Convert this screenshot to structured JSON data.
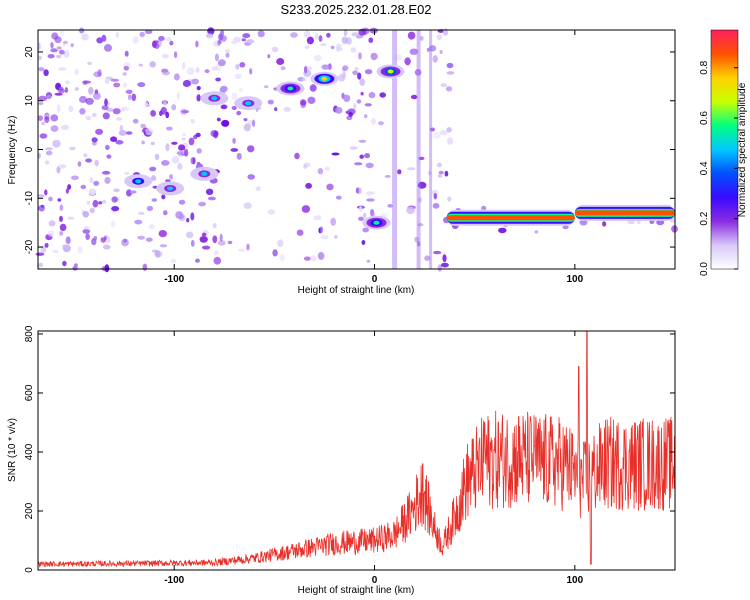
{
  "figure": {
    "title": "S233.2025.232.01.28.E02"
  },
  "chart_data": [
    {
      "type": "heatmap",
      "title": "S233.2025.232.01.28.E02",
      "xlabel": "Height of straight line (km)",
      "ylabel": "Frequency (Hz)",
      "xlim": [
        -168,
        150
      ],
      "ylim": [
        -24.5,
        24.5
      ],
      "x_ticks": [
        -100,
        0,
        100
      ],
      "y_ticks": [
        -20,
        -10,
        0,
        10,
        20
      ],
      "colorbar": {
        "label": "Normalized spectral amplitude",
        "range": [
          0,
          0.95
        ],
        "ticks": [
          0.0,
          0.2,
          0.4,
          0.6,
          0.8
        ],
        "colormap": [
          "#ffffff",
          "#d8c8f8",
          "#8a2be2",
          "#3a0aff",
          "#0050ff",
          "#00c8ff",
          "#00ff80",
          "#c8ff00",
          "#ffd000",
          "#ff5000",
          "#ff2060"
        ]
      },
      "features": [
        {
          "kind": "blob",
          "x": -118,
          "y": -6.5,
          "amplitude": 0.25
        },
        {
          "kind": "blob",
          "x": -102,
          "y": -8,
          "amplitude": 0.2
        },
        {
          "kind": "blob",
          "x": -85,
          "y": -5,
          "amplitude": 0.2
        },
        {
          "kind": "blob",
          "x": -80,
          "y": 10.5,
          "amplitude": 0.22
        },
        {
          "kind": "blob",
          "x": -63,
          "y": 9.5,
          "amplitude": 0.2
        },
        {
          "kind": "blob",
          "x": -42,
          "y": 12.5,
          "amplitude": 0.3
        },
        {
          "kind": "blob",
          "x": -25,
          "y": 14.5,
          "amplitude": 0.5
        },
        {
          "kind": "blob",
          "x": 1,
          "y": -15,
          "amplitude": 0.3
        },
        {
          "kind": "blob",
          "x": 8,
          "y": 16,
          "amplitude": 0.4
        },
        {
          "kind": "band",
          "x_start": 36,
          "x_end": 100,
          "y": -14,
          "amplitude": 0.85
        },
        {
          "kind": "band",
          "x_start": 100,
          "x_end": 150,
          "y": -13,
          "amplitude": 0.85
        }
      ]
    },
    {
      "type": "line",
      "xlabel": "Height of straight line (km)",
      "ylabel": "SNR (10 * v/v)",
      "xlim": [
        -168,
        150
      ],
      "ylim": [
        0,
        810
      ],
      "x_ticks": [
        -100,
        0,
        100
      ],
      "y_ticks": [
        0,
        200,
        400,
        600,
        800
      ],
      "color": "#e8302a",
      "envelope": [
        {
          "x": -168,
          "y": 20
        },
        {
          "x": -120,
          "y": 22
        },
        {
          "x": -80,
          "y": 25
        },
        {
          "x": -60,
          "y": 40
        },
        {
          "x": -40,
          "y": 65
        },
        {
          "x": -20,
          "y": 90
        },
        {
          "x": 0,
          "y": 100
        },
        {
          "x": 10,
          "y": 120
        },
        {
          "x": 18,
          "y": 190
        },
        {
          "x": 24,
          "y": 270
        },
        {
          "x": 30,
          "y": 140
        },
        {
          "x": 34,
          "y": 80
        },
        {
          "x": 40,
          "y": 180
        },
        {
          "x": 46,
          "y": 300
        },
        {
          "x": 55,
          "y": 370
        },
        {
          "x": 70,
          "y": 380
        },
        {
          "x": 95,
          "y": 360
        },
        {
          "x": 104,
          "y": 300
        },
        {
          "x": 115,
          "y": 360
        },
        {
          "x": 150,
          "y": 360
        }
      ],
      "spikes": [
        {
          "x": 24,
          "y": 360
        },
        {
          "x": 55,
          "y": 500
        },
        {
          "x": 72,
          "y": 520
        },
        {
          "x": 80,
          "y": 420
        },
        {
          "x": 102,
          "y": 690
        },
        {
          "x": 106,
          "y": 810
        },
        {
          "x": 108,
          "y": 20
        }
      ]
    }
  ]
}
